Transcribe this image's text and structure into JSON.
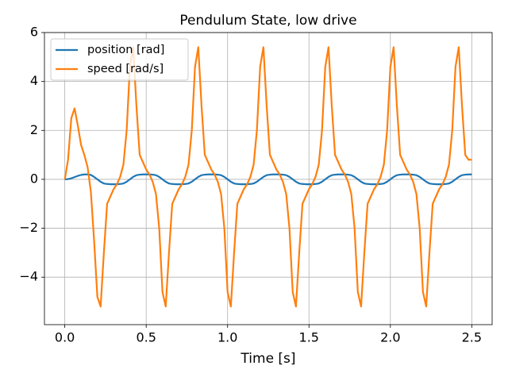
{
  "chart_data": {
    "type": "line",
    "title": "Pendulum State, low drive",
    "xlabel": "Time [s]",
    "x": [
      0,
      0.02,
      0.04,
      0.06,
      0.08,
      0.1,
      0.12,
      0.14,
      0.16,
      0.18,
      0.2,
      0.22,
      0.24,
      0.26,
      0.28,
      0.3,
      0.32,
      0.34,
      0.36,
      0.38,
      0.4,
      0.42,
      0.44,
      0.46,
      0.48,
      0.5,
      0.52,
      0.54,
      0.56,
      0.58,
      0.6,
      0.62,
      0.64,
      0.66,
      0.68,
      0.7,
      0.72,
      0.74,
      0.76,
      0.78,
      0.8,
      0.82,
      0.84,
      0.86,
      0.88,
      0.9,
      0.92,
      0.94,
      0.96,
      0.98,
      1.0,
      1.02,
      1.04,
      1.06,
      1.08,
      1.1,
      1.12,
      1.14,
      1.16,
      1.18,
      1.2,
      1.22,
      1.24,
      1.26,
      1.28,
      1.3,
      1.32,
      1.34,
      1.36,
      1.38,
      1.4,
      1.42,
      1.44,
      1.46,
      1.48,
      1.5,
      1.52,
      1.54,
      1.56,
      1.58,
      1.6,
      1.62,
      1.64,
      1.66,
      1.68,
      1.7,
      1.72,
      1.74,
      1.76,
      1.78,
      1.8,
      1.82,
      1.84,
      1.86,
      1.88,
      1.9,
      1.92,
      1.94,
      1.96,
      1.98,
      2.0,
      2.02,
      2.04,
      2.06,
      2.08,
      2.1,
      2.12,
      2.14,
      2.16,
      2.18,
      2.2,
      2.22,
      2.24,
      2.26,
      2.28,
      2.3,
      2.32,
      2.34,
      2.36,
      2.38,
      2.4,
      2.42,
      2.44,
      2.46,
      2.48,
      2.5
    ],
    "series": [
      {
        "name": "position [rad]",
        "color": "#1f77b4",
        "values": [
          0,
          0.01,
          0.04,
          0.09,
          0.14,
          0.18,
          0.2,
          0.2,
          0.18,
          0.1,
          0.0,
          -0.1,
          -0.17,
          -0.19,
          -0.2,
          -0.2,
          -0.2,
          -0.19,
          -0.17,
          -0.1,
          0.0,
          0.1,
          0.17,
          0.19,
          0.2,
          0.2,
          0.2,
          0.19,
          0.17,
          0.1,
          0.0,
          -0.1,
          -0.17,
          -0.19,
          -0.2,
          -0.2,
          -0.2,
          -0.19,
          -0.17,
          -0.1,
          0.0,
          0.1,
          0.17,
          0.19,
          0.2,
          0.2,
          0.2,
          0.19,
          0.17,
          0.1,
          0.0,
          -0.1,
          -0.17,
          -0.19,
          -0.2,
          -0.2,
          -0.2,
          -0.19,
          -0.17,
          -0.1,
          0.0,
          0.1,
          0.17,
          0.19,
          0.2,
          0.2,
          0.2,
          0.19,
          0.17,
          0.1,
          0.0,
          -0.1,
          -0.17,
          -0.19,
          -0.2,
          -0.2,
          -0.2,
          -0.19,
          -0.17,
          -0.1,
          0.0,
          0.1,
          0.17,
          0.19,
          0.2,
          0.2,
          0.2,
          0.19,
          0.17,
          0.1,
          0.0,
          -0.1,
          -0.17,
          -0.19,
          -0.2,
          -0.2,
          -0.2,
          -0.19,
          -0.17,
          -0.1,
          0.0,
          0.1,
          0.17,
          0.19,
          0.2,
          0.2,
          0.2,
          0.19,
          0.17,
          0.1,
          0.0,
          -0.1,
          -0.17,
          -0.19,
          -0.2,
          -0.2,
          -0.2,
          -0.19,
          -0.17,
          -0.1,
          0.0,
          0.1,
          0.17,
          0.19,
          0.2,
          0.2
        ]
      },
      {
        "name": "speed [rad/s]",
        "color": "#ff7f0e",
        "values": [
          0,
          0.8,
          2.5,
          2.9,
          2.2,
          1.4,
          1.0,
          0.5,
          -0.5,
          -2.5,
          -4.8,
          -5.2,
          -3.0,
          -1.0,
          -0.7,
          -0.4,
          -0.2,
          0.1,
          0.6,
          2.0,
          4.6,
          5.4,
          3.0,
          1.0,
          0.7,
          0.4,
          0.2,
          -0.1,
          -0.6,
          -2.0,
          -4.6,
          -5.2,
          -3.0,
          -1.0,
          -0.7,
          -0.4,
          -0.2,
          0.1,
          0.6,
          2.0,
          4.6,
          5.4,
          3.0,
          1.0,
          0.7,
          0.4,
          0.2,
          -0.1,
          -0.6,
          -2.0,
          -4.6,
          -5.2,
          -3.0,
          -1.0,
          -0.7,
          -0.4,
          -0.2,
          0.1,
          0.6,
          2.0,
          4.6,
          5.4,
          3.0,
          1.0,
          0.7,
          0.4,
          0.2,
          -0.1,
          -0.6,
          -2.0,
          -4.6,
          -5.2,
          -3.0,
          -1.0,
          -0.7,
          -0.4,
          -0.2,
          0.1,
          0.6,
          2.0,
          4.6,
          5.4,
          3.0,
          1.0,
          0.7,
          0.4,
          0.2,
          -0.1,
          -0.6,
          -2.0,
          -4.6,
          -5.2,
          -3.0,
          -1.0,
          -0.7,
          -0.4,
          -0.2,
          0.1,
          0.6,
          2.0,
          4.6,
          5.4,
          3.0,
          1.0,
          0.7,
          0.4,
          0.2,
          -0.1,
          -0.6,
          -2.0,
          -4.6,
          -5.2,
          -3.0,
          -1.0,
          -0.7,
          -0.4,
          -0.2,
          0.1,
          0.6,
          2.0,
          4.6,
          5.4,
          3.0,
          1.0,
          0.8,
          0.8
        ]
      }
    ],
    "xlim": [
      -0.125,
      2.625
    ],
    "xticks": [
      {
        "value": 0,
        "label": "0.0"
      },
      0.5,
      {
        "value": 1,
        "label": "1.0"
      },
      1.5,
      {
        "value": 2,
        "label": "2.0"
      },
      2.5
    ],
    "ylim": [
      -5.94,
      6.0
    ],
    "yticks": [
      {
        "value": -4,
        "label": "−4"
      },
      {
        "value": -2,
        "label": "−2"
      },
      0,
      2,
      4,
      6
    ],
    "grid": true,
    "legend": "upper-left"
  }
}
